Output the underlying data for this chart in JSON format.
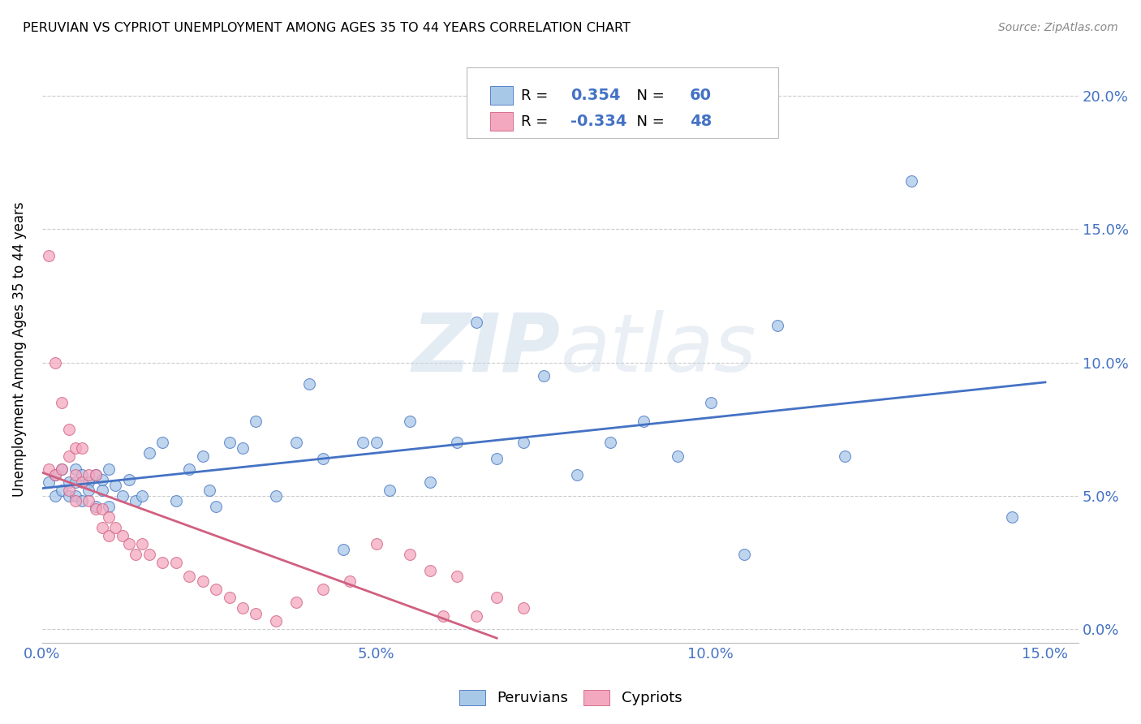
{
  "title": "PERUVIAN VS CYPRIOT UNEMPLOYMENT AMONG AGES 35 TO 44 YEARS CORRELATION CHART",
  "source": "Source: ZipAtlas.com",
  "ylabel": "Unemployment Among Ages 35 to 44 years",
  "xlim": [
    0.0,
    0.155
  ],
  "ylim": [
    -0.005,
    0.215
  ],
  "xticks": [
    0.0,
    0.05,
    0.1,
    0.15
  ],
  "xtick_labels": [
    "0.0%",
    "5.0%",
    "10.0%",
    "15.0%"
  ],
  "yticks_right": [
    0.0,
    0.05,
    0.1,
    0.15,
    0.2
  ],
  "ytick_labels_right": [
    "0.0%",
    "5.0%",
    "10.0%",
    "15.0%",
    "20.0%"
  ],
  "peruvian_scatter_color": "#a8c8e8",
  "cypriot_scatter_color": "#f4a8c0",
  "trend_peruvian_color": "#4472c4",
  "trend_cypriot_color": "#d06080",
  "legend_text_color": "#4472c4",
  "watermark_color": "#c8d8e8",
  "R_peruvian": "0.354",
  "N_peruvian": "60",
  "R_cypriot": "-0.334",
  "N_cypriot": "48",
  "peruvian_x": [
    0.001,
    0.002,
    0.002,
    0.003,
    0.003,
    0.004,
    0.004,
    0.005,
    0.005,
    0.005,
    0.006,
    0.006,
    0.007,
    0.007,
    0.008,
    0.008,
    0.009,
    0.009,
    0.01,
    0.01,
    0.011,
    0.012,
    0.013,
    0.014,
    0.015,
    0.016,
    0.018,
    0.02,
    0.022,
    0.024,
    0.025,
    0.026,
    0.028,
    0.03,
    0.032,
    0.035,
    0.038,
    0.04,
    0.042,
    0.045,
    0.048,
    0.05,
    0.052,
    0.055,
    0.058,
    0.062,
    0.065,
    0.068,
    0.072,
    0.075,
    0.08,
    0.085,
    0.09,
    0.095,
    0.1,
    0.105,
    0.11,
    0.12,
    0.13,
    0.145
  ],
  "peruvian_y": [
    0.055,
    0.058,
    0.05,
    0.052,
    0.06,
    0.055,
    0.05,
    0.06,
    0.055,
    0.05,
    0.058,
    0.048,
    0.055,
    0.052,
    0.058,
    0.046,
    0.052,
    0.056,
    0.06,
    0.046,
    0.054,
    0.05,
    0.056,
    0.048,
    0.05,
    0.066,
    0.07,
    0.048,
    0.06,
    0.065,
    0.052,
    0.046,
    0.07,
    0.068,
    0.078,
    0.05,
    0.07,
    0.092,
    0.064,
    0.03,
    0.07,
    0.07,
    0.052,
    0.078,
    0.055,
    0.07,
    0.115,
    0.064,
    0.07,
    0.095,
    0.058,
    0.07,
    0.078,
    0.065,
    0.085,
    0.028,
    0.114,
    0.065,
    0.168,
    0.042
  ],
  "cypriot_x": [
    0.001,
    0.001,
    0.002,
    0.002,
    0.003,
    0.003,
    0.004,
    0.004,
    0.004,
    0.005,
    0.005,
    0.005,
    0.006,
    0.006,
    0.007,
    0.007,
    0.008,
    0.008,
    0.009,
    0.009,
    0.01,
    0.01,
    0.011,
    0.012,
    0.013,
    0.014,
    0.015,
    0.016,
    0.018,
    0.02,
    0.022,
    0.024,
    0.026,
    0.028,
    0.03,
    0.032,
    0.035,
    0.038,
    0.042,
    0.046,
    0.05,
    0.055,
    0.058,
    0.06,
    0.062,
    0.065,
    0.068,
    0.072
  ],
  "cypriot_y": [
    0.14,
    0.06,
    0.1,
    0.058,
    0.085,
    0.06,
    0.075,
    0.065,
    0.052,
    0.068,
    0.058,
    0.048,
    0.068,
    0.055,
    0.058,
    0.048,
    0.058,
    0.045,
    0.045,
    0.038,
    0.042,
    0.035,
    0.038,
    0.035,
    0.032,
    0.028,
    0.032,
    0.028,
    0.025,
    0.025,
    0.02,
    0.018,
    0.015,
    0.012,
    0.008,
    0.006,
    0.003,
    0.01,
    0.015,
    0.018,
    0.032,
    0.028,
    0.022,
    0.005,
    0.02,
    0.005,
    0.012,
    0.008
  ]
}
